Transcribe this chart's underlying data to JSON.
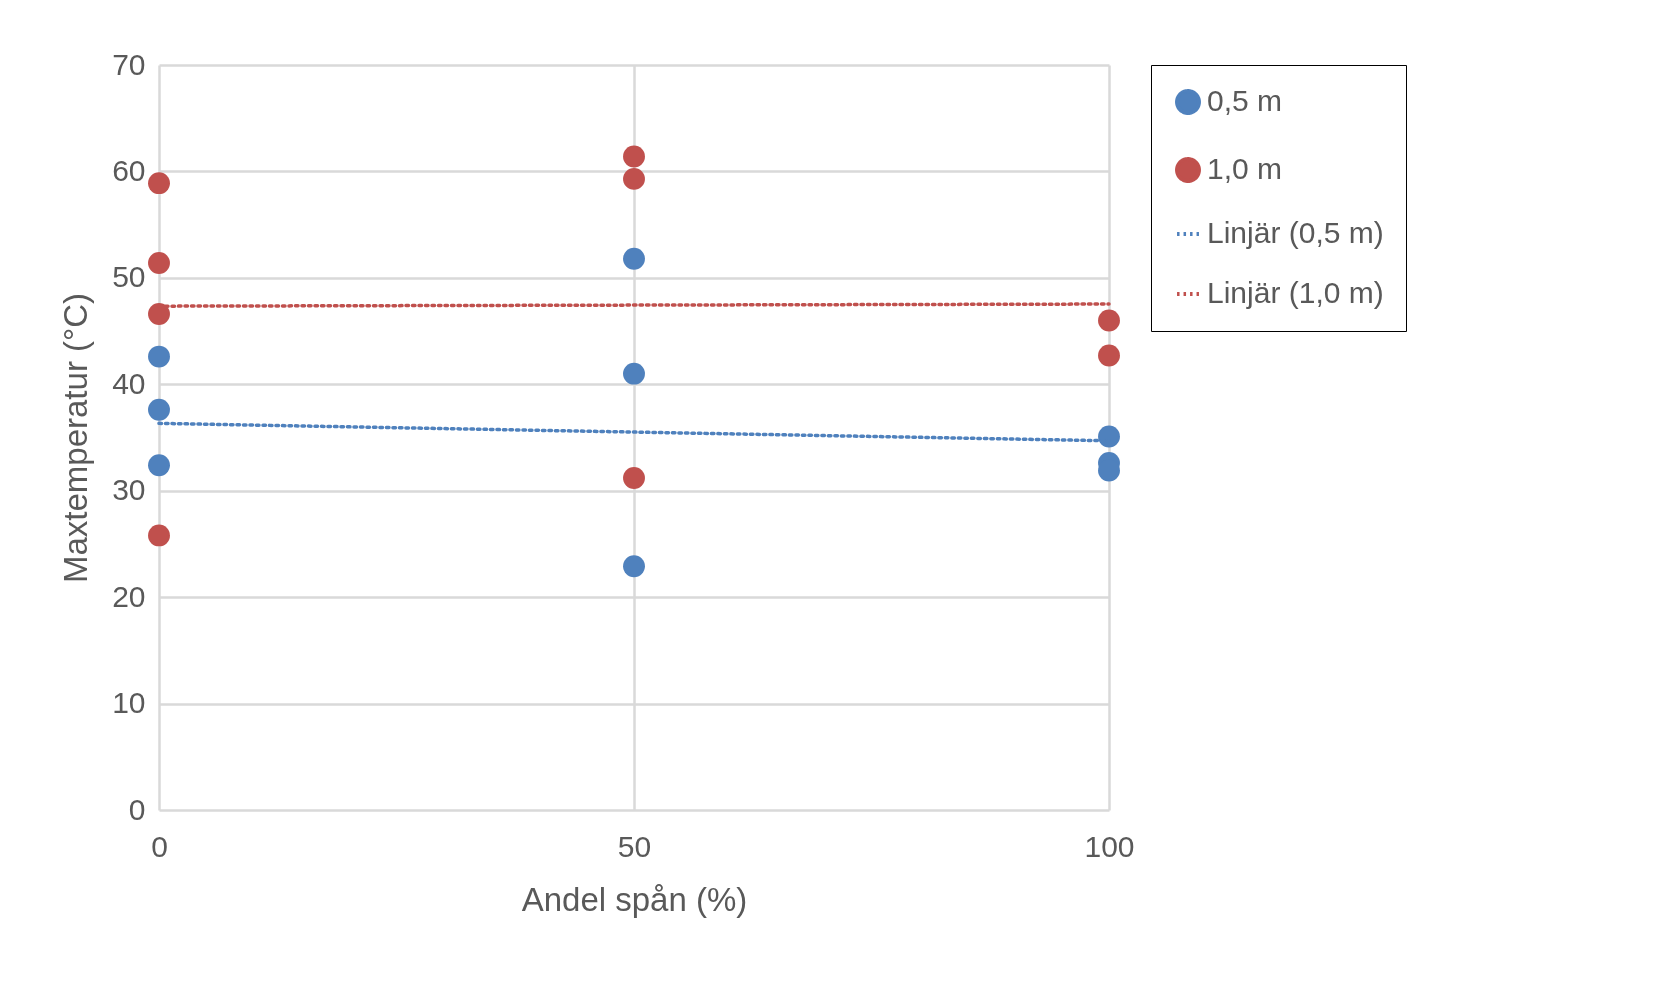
{
  "chart_data": {
    "type": "scatter",
    "xlabel": "Andel spån (%)",
    "ylabel": "Maxtemperatur (°C)",
    "xlim": [
      0,
      100
    ],
    "xticks": [
      0,
      50,
      100
    ],
    "ylim": [
      0,
      70
    ],
    "yticks": [
      0,
      10,
      20,
      30,
      40,
      50,
      60,
      70
    ],
    "grid": true,
    "legend": "right",
    "series": [
      {
        "name": "0,5 m",
        "color": "#4f81bd",
        "marker": "circle",
        "x": [
          0,
          0,
          0,
          50,
          50,
          50,
          100,
          100,
          100
        ],
        "values": [
          42.6,
          37.6,
          32.4,
          51.8,
          41.0,
          22.9,
          35.1,
          32.6,
          31.9
        ]
      },
      {
        "name": "1,0 m",
        "color": "#c0504d",
        "marker": "circle",
        "x": [
          0,
          0,
          0,
          0,
          50,
          50,
          50,
          100,
          100
        ],
        "values": [
          58.9,
          51.4,
          46.6,
          25.8,
          61.4,
          59.3,
          31.2,
          46.0,
          42.7
        ]
      },
      {
        "name": "Linjär (0,5 m)",
        "type": "line",
        "line_style": "dotted",
        "color": "#4f81bd",
        "x": [
          0,
          100
        ],
        "values": [
          36.33,
          34.69
        ]
      },
      {
        "name": "Linjär (1,0 m)",
        "type": "line",
        "line_style": "dotted",
        "color": "#c0504d",
        "x": [
          0,
          100
        ],
        "values": [
          47.34,
          47.54
        ]
      }
    ]
  }
}
